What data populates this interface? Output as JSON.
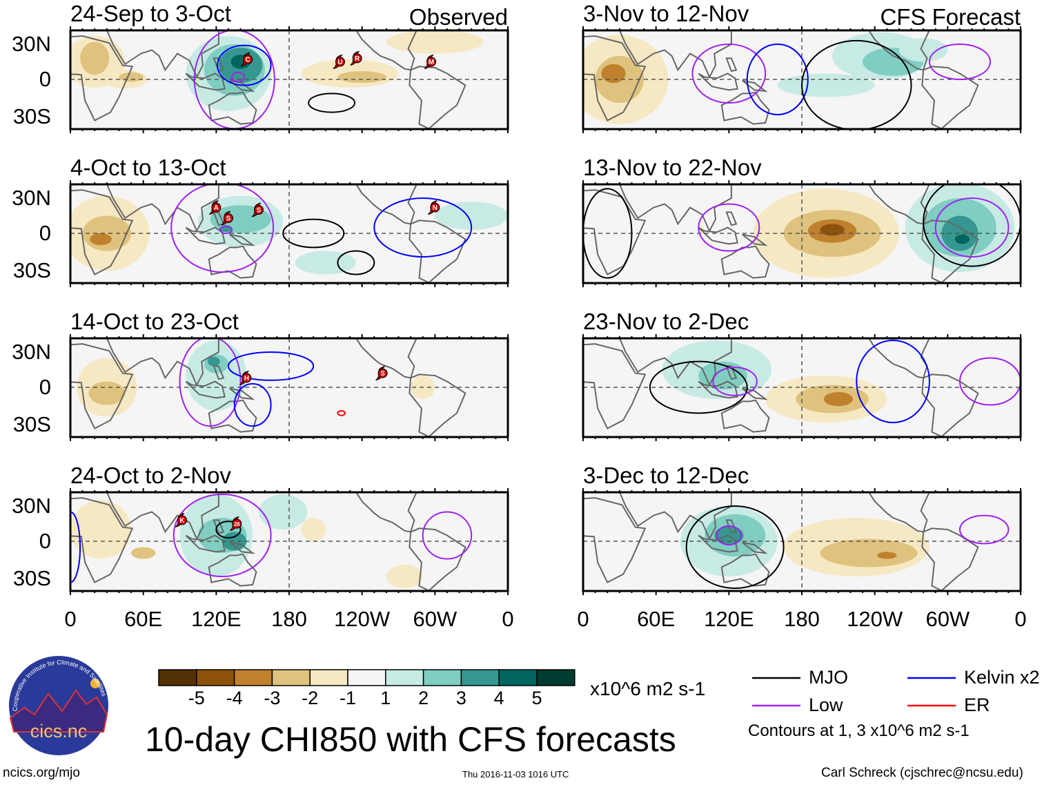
{
  "figure": {
    "title": "10-day CHI850 with CFS forecasts",
    "left_column_label": "Observed",
    "right_column_label": "CFS Forecast",
    "lat_labels": [
      "30N",
      "0",
      "30S"
    ],
    "lon_labels": [
      "0",
      "60E",
      "120E",
      "180",
      "120W",
      "60W",
      "0"
    ],
    "units": "x10^6 m2 s-1",
    "colorbar": {
      "labels": [
        "-5",
        "-4",
        "-3",
        "-2",
        "-1",
        "1",
        "2",
        "3",
        "4",
        "5"
      ],
      "colors": [
        "#543005",
        "#8c510a",
        "#bf812d",
        "#dfc27d",
        "#f6e8c3",
        "#f5f5f5",
        "#c7eae5",
        "#80cdc1",
        "#35978f",
        "#01665e",
        "#003c30"
      ]
    },
    "legend": {
      "items": [
        {
          "label": "MJO",
          "color": "#000000"
        },
        {
          "label": "Kelvin x2",
          "color": "#0000ff"
        },
        {
          "label": "Low",
          "color": "#a020f0"
        },
        {
          "label": "ER",
          "color": "#ff0000"
        }
      ],
      "note": "Contours at 1, 3 x10^6 m2 s-1"
    },
    "logo_text": "cics.nc",
    "logo_ring_text": "Cooperative Institute for Climate and Satellites",
    "footer": {
      "url": "ncics.org/mjo",
      "timestamp": "Thu 2016-11-03 1016 UTC",
      "author": "Carl Schreck (cjschrec@ncsu.edu)"
    }
  },
  "panels": [
    {
      "period": "24-Sep to 3-Oct",
      "source": "Observed",
      "shading": [
        [
          20,
          15,
          25,
          22,
          -1
        ],
        [
          20,
          18,
          12,
          14,
          -2
        ],
        [
          45,
          0,
          18,
          8,
          -1
        ],
        [
          50,
          2,
          10,
          4,
          -2
        ],
        [
          130,
          5,
          35,
          32,
          1
        ],
        [
          135,
          8,
          25,
          22,
          2
        ],
        [
          140,
          12,
          18,
          15,
          3
        ],
        [
          140,
          15,
          8,
          6,
          4
        ],
        [
          230,
          5,
          40,
          12,
          -1
        ],
        [
          240,
          2,
          20,
          5,
          -2
        ],
        [
          300,
          32,
          40,
          10,
          -1
        ]
      ],
      "contours": [
        [
          "Low",
          135,
          0,
          33,
          42
        ],
        [
          "Kelvin x2",
          143,
          12,
          22,
          17
        ],
        [
          "Low",
          138,
          2,
          5,
          4
        ],
        [
          "MJO",
          215,
          -20,
          19,
          8
        ]
      ],
      "storms": [
        [
          "C",
          146,
          17
        ],
        [
          "U",
          222,
          15
        ],
        [
          "R",
          236,
          18
        ],
        [
          "M",
          297,
          15
        ]
      ]
    },
    {
      "period": "4-Oct to 13-Oct",
      "source": "Observed",
      "shading": [
        [
          30,
          0,
          35,
          32,
          -1
        ],
        [
          30,
          0,
          20,
          15,
          -2
        ],
        [
          25,
          -5,
          9,
          5,
          -3
        ],
        [
          140,
          10,
          35,
          22,
          1
        ],
        [
          140,
          12,
          25,
          12,
          2
        ],
        [
          128,
          4,
          5,
          3,
          3
        ],
        [
          330,
          15,
          30,
          12,
          1
        ],
        [
          210,
          -25,
          25,
          10,
          1
        ]
      ],
      "contours": [
        [
          "Low",
          125,
          5,
          42,
          38
        ],
        [
          "MJO",
          200,
          0,
          25,
          12
        ],
        [
          "MJO",
          235,
          -25,
          15,
          10
        ],
        [
          "Kelvin x2",
          290,
          5,
          40,
          25
        ],
        [
          "Low",
          128,
          3,
          5,
          3
        ]
      ],
      "storms": [
        [
          "A",
          120,
          22
        ],
        [
          "S",
          130,
          13
        ],
        [
          "S",
          155,
          20
        ],
        [
          "N",
          300,
          22
        ]
      ]
    },
    {
      "period": "14-Oct to 23-Oct",
      "source": "Observed",
      "shading": [
        [
          30,
          0,
          25,
          25,
          -1
        ],
        [
          30,
          -5,
          15,
          10,
          -2
        ],
        [
          120,
          10,
          25,
          30,
          1
        ],
        [
          120,
          20,
          10,
          8,
          2
        ],
        [
          118,
          22,
          5,
          4,
          3
        ],
        [
          290,
          0,
          10,
          10,
          -1
        ]
      ],
      "contours": [
        [
          "Low",
          115,
          5,
          25,
          38
        ],
        [
          "Kelvin x2",
          165,
          18,
          35,
          12
        ],
        [
          "Kelvin x2",
          150,
          -15,
          15,
          18
        ],
        [
          "ER",
          223,
          -22,
          3,
          2
        ]
      ],
      "storms": [
        [
          "H",
          145,
          8
        ],
        [
          "S",
          257,
          12
        ]
      ]
    },
    {
      "period": "24-Oct to 2-Nov",
      "source": "Observed",
      "shading": [
        [
          25,
          10,
          25,
          25,
          -1
        ],
        [
          60,
          -10,
          10,
          5,
          -2
        ],
        [
          120,
          5,
          30,
          35,
          1
        ],
        [
          125,
          5,
          20,
          15,
          2
        ],
        [
          135,
          0,
          10,
          8,
          3
        ],
        [
          275,
          -30,
          15,
          10,
          -1
        ],
        [
          200,
          10,
          10,
          10,
          -1
        ],
        [
          175,
          25,
          20,
          15,
          1
        ]
      ],
      "contours": [
        [
          "Low",
          125,
          5,
          40,
          35
        ],
        [
          "MJO",
          130,
          10,
          10,
          7
        ],
        [
          "Kelvin x2",
          0,
          -5,
          8,
          30
        ],
        [
          "Low",
          310,
          5,
          20,
          20
        ]
      ],
      "storms": [
        [
          "K",
          92,
          18
        ],
        [
          "26",
          137,
          15
        ]
      ]
    },
    {
      "period": "3-Nov to 12-Nov",
      "source": "CFS Forecast",
      "shading": [
        [
          30,
          0,
          40,
          38,
          -1
        ],
        [
          30,
          0,
          20,
          20,
          -2
        ],
        [
          25,
          5,
          10,
          8,
          -3
        ],
        [
          245,
          20,
          40,
          20,
          1
        ],
        [
          255,
          15,
          25,
          12,
          2
        ],
        [
          280,
          25,
          20,
          10,
          1
        ],
        [
          200,
          -5,
          40,
          10,
          1
        ]
      ],
      "contours": [
        [
          "Low",
          120,
          5,
          30,
          25
        ],
        [
          "Kelvin x2",
          160,
          0,
          25,
          30
        ],
        [
          "MJO",
          225,
          -5,
          45,
          38
        ],
        [
          "Low",
          310,
          15,
          25,
          15
        ]
      ],
      "storms": []
    },
    {
      "period": "13-Nov to 22-Nov",
      "source": "CFS Forecast",
      "shading": [
        [
          200,
          0,
          60,
          38,
          -1
        ],
        [
          205,
          0,
          40,
          20,
          -2
        ],
        [
          205,
          2,
          20,
          10,
          -3
        ],
        [
          205,
          3,
          10,
          5,
          -4
        ],
        [
          310,
          5,
          45,
          38,
          1
        ],
        [
          310,
          5,
          30,
          25,
          2
        ],
        [
          310,
          0,
          15,
          15,
          3
        ],
        [
          312,
          -5,
          6,
          4,
          4
        ]
      ],
      "contours": [
        [
          "Low",
          120,
          5,
          25,
          20
        ],
        [
          "Low",
          320,
          5,
          30,
          25
        ],
        [
          "MJO",
          320,
          10,
          40,
          38
        ],
        [
          "MJO",
          20,
          0,
          20,
          38
        ]
      ],
      "storms": []
    },
    {
      "period": "23-Nov to 2-Dec",
      "source": "CFS Forecast",
      "shading": [
        [
          110,
          15,
          45,
          25,
          1
        ],
        [
          115,
          10,
          20,
          12,
          2
        ],
        [
          200,
          -10,
          50,
          20,
          -1
        ],
        [
          205,
          -10,
          30,
          12,
          -2
        ],
        [
          210,
          -10,
          12,
          6,
          -3
        ]
      ],
      "contours": [
        [
          "MJO",
          95,
          0,
          40,
          22
        ],
        [
          "Low",
          125,
          5,
          18,
          12
        ],
        [
          "Kelvin x2",
          255,
          5,
          30,
          35
        ],
        [
          "Low",
          335,
          5,
          25,
          20
        ]
      ],
      "storms": []
    },
    {
      "period": "3-Dec to 12-Dec",
      "source": "CFS Forecast",
      "shading": [
        [
          120,
          0,
          40,
          30,
          1
        ],
        [
          125,
          5,
          25,
          18,
          2
        ],
        [
          120,
          5,
          12,
          8,
          3
        ],
        [
          225,
          -5,
          60,
          25,
          -1
        ],
        [
          235,
          -10,
          40,
          12,
          -2
        ],
        [
          250,
          -12,
          8,
          3,
          -3
        ]
      ],
      "contours": [
        [
          "MJO",
          125,
          -5,
          40,
          35
        ],
        [
          "Low",
          120,
          5,
          10,
          8
        ],
        [
          "Low",
          330,
          10,
          20,
          12
        ]
      ],
      "storms": []
    }
  ]
}
